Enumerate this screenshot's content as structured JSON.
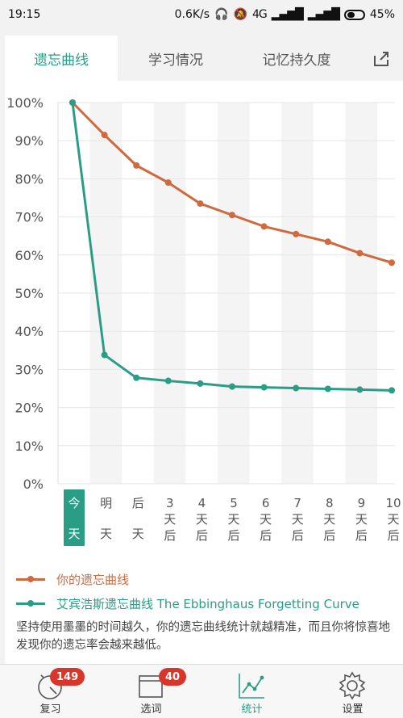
{
  "status_bar": {
    "time": "19:15",
    "speed": "0.6K/s",
    "network": "4G",
    "battery": "45%"
  },
  "tabs": [
    {
      "label": "遗忘曲线",
      "active": true
    },
    {
      "label": "学习情况",
      "active": false
    },
    {
      "label": "记忆持久度",
      "active": false
    }
  ],
  "chart_data": {
    "type": "line",
    "categories": [
      "今天",
      "明天",
      "后天",
      "3天后",
      "4天后",
      "5天后",
      "6天后",
      "7天后",
      "8天后",
      "9天后",
      "10天后"
    ],
    "category_labels": [
      [
        "今",
        "天"
      ],
      [
        "明",
        "天"
      ],
      [
        "后",
        "天"
      ],
      [
        "3",
        "天",
        "后"
      ],
      [
        "4",
        "天",
        "后"
      ],
      [
        "5",
        "天",
        "后"
      ],
      [
        "6",
        "天",
        "后"
      ],
      [
        "7",
        "天",
        "后"
      ],
      [
        "8",
        "天",
        "后"
      ],
      [
        "9",
        "天",
        "后"
      ],
      [
        "10",
        "天",
        "后"
      ]
    ],
    "y_ticks": [
      "0%",
      "10%",
      "20%",
      "30%",
      "40%",
      "50%",
      "60%",
      "70%",
      "80%",
      "90%",
      "100%"
    ],
    "ylim": [
      0,
      100
    ],
    "series": [
      {
        "name": "你的遗忘曲线",
        "color": "#cf6a3f",
        "values": [
          100,
          91.5,
          83.5,
          79,
          73.5,
          70.5,
          67.5,
          65.5,
          63.5,
          60.5,
          58
        ]
      },
      {
        "name": "艾宾浩斯遗忘曲线 The Ebbinghaus Forgetting Curve",
        "color": "#2a9d86",
        "values": [
          100,
          33.8,
          27.8,
          27,
          26.3,
          25.5,
          25.3,
          25.1,
          24.9,
          24.7,
          24.5
        ]
      }
    ]
  },
  "legend": {
    "mine": "你的遗忘曲线",
    "ebbinghaus": "艾宾浩斯遗忘曲线 The Ebbinghaus Forgetting Curve",
    "note": "坚持使用墨墨的时间越久，你的遗忘曲线统计就越精准，而且你将惊喜地发现你的遗忘率会越来越低。"
  },
  "nav": [
    {
      "label": "复习",
      "badge": "149"
    },
    {
      "label": "选词",
      "badge": "40"
    },
    {
      "label": "统计",
      "badge": ""
    },
    {
      "label": "设置",
      "badge": ""
    }
  ],
  "colors": {
    "accent": "#2a9d86",
    "mine": "#cf6a3f",
    "badge": "#d9362b"
  }
}
